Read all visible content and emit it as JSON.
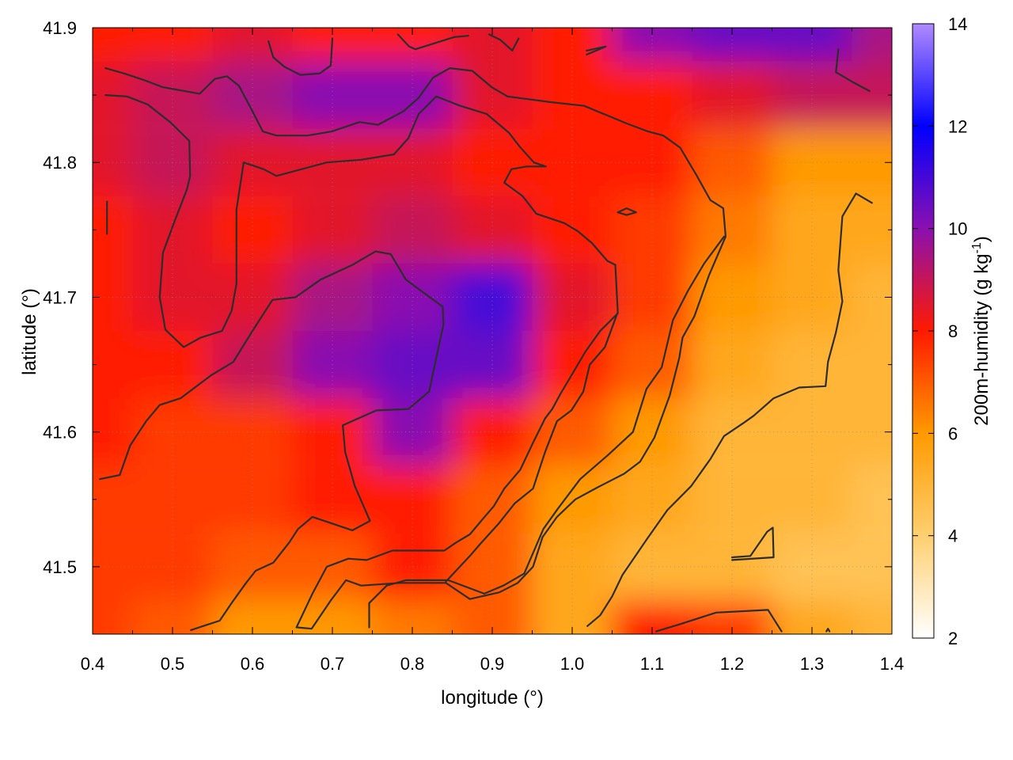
{
  "chart_data": {
    "type": "heatmap",
    "title": "",
    "xlabel": "longitude (°)",
    "ylabel": "latitude (°)",
    "colorbar_label": "200m-humidity (g kg-1)",
    "colorbar_label_parts": {
      "main": "200m-humidity (g kg",
      "sup": "-1",
      "close": ")"
    },
    "xlim": [
      0.4,
      1.4
    ],
    "ylim": [
      41.45,
      41.9
    ],
    "zlim": [
      2,
      14
    ],
    "x_ticks": [
      0.4,
      0.5,
      0.6,
      0.7,
      0.8,
      0.9,
      1.0,
      1.1,
      1.2,
      1.3,
      1.4
    ],
    "x_tick_labels": [
      "0.4",
      "0.5",
      "0.6",
      "0.7",
      "0.8",
      "0.9",
      "1.0",
      "1.1",
      "1.2",
      "1.3",
      "1.4"
    ],
    "y_ticks": [
      41.5,
      41.6,
      41.7,
      41.8,
      41.9
    ],
    "y_tick_labels": [
      "41.5",
      "41.6",
      "41.7",
      "41.8",
      "41.9"
    ],
    "z_ticks": [
      2,
      4,
      6,
      8,
      10,
      12,
      14
    ],
    "z_tick_labels": [
      "2",
      "4",
      "6",
      "8",
      "10",
      "12",
      "14"
    ],
    "grid": true,
    "colormap": [
      {
        "z": 2,
        "color": "#ffffff"
      },
      {
        "z": 4,
        "color": "#ffcf70"
      },
      {
        "z": 6,
        "color": "#ff9a00"
      },
      {
        "z": 8,
        "color": "#ff1a00"
      },
      {
        "z": 10,
        "color": "#8a10b0"
      },
      {
        "z": 12,
        "color": "#0000ff"
      },
      {
        "z": 14,
        "color": "#b08aff"
      }
    ],
    "humidity_grid": {
      "x": [
        0.4,
        0.5,
        0.6,
        0.7,
        0.8,
        0.9,
        1.0,
        1.1,
        1.2,
        1.3,
        1.4
      ],
      "y": [
        41.9,
        41.85,
        41.8,
        41.75,
        41.7,
        41.65,
        41.6,
        41.55,
        41.5,
        41.45
      ],
      "z": [
        [
          8.0,
          8.0,
          8.5,
          8.0,
          8.0,
          8.5,
          8.0,
          10.0,
          10.5,
          10.5,
          9.5
        ],
        [
          8.5,
          9.0,
          9.5,
          10.0,
          10.0,
          8.5,
          8.0,
          8.0,
          8.5,
          9.0,
          9.0
        ],
        [
          8.5,
          9.0,
          8.5,
          8.5,
          8.5,
          8.0,
          8.0,
          8.0,
          7.0,
          6.0,
          6.0
        ],
        [
          8.0,
          8.5,
          8.0,
          8.5,
          9.0,
          8.5,
          8.0,
          7.5,
          6.5,
          5.5,
          5.5
        ],
        [
          8.0,
          8.5,
          8.5,
          9.5,
          10.0,
          11.0,
          8.5,
          7.5,
          6.0,
          5.5,
          5.0
        ],
        [
          8.0,
          8.0,
          9.0,
          10.0,
          10.5,
          10.5,
          8.0,
          7.0,
          5.5,
          5.0,
          5.0
        ],
        [
          8.0,
          7.5,
          7.5,
          8.0,
          10.0,
          8.0,
          7.0,
          6.0,
          5.0,
          5.0,
          5.0
        ],
        [
          7.5,
          7.5,
          7.5,
          8.0,
          8.0,
          7.0,
          6.0,
          5.5,
          5.0,
          5.0,
          4.5
        ],
        [
          7.5,
          7.5,
          7.0,
          7.0,
          8.0,
          7.0,
          5.5,
          5.0,
          5.0,
          4.5,
          4.5
        ],
        [
          7.5,
          7.0,
          6.0,
          6.0,
          6.5,
          7.0,
          5.5,
          8.0,
          7.5,
          5.5,
          5.0
        ]
      ]
    },
    "contours": [
      [
        [
          0.418,
          41.747
        ],
        [
          0.418,
          41.771
        ]
      ],
      [
        [
          0.409,
          41.565
        ],
        [
          0.434,
          41.568
        ],
        [
          0.447,
          41.59
        ],
        [
          0.467,
          41.608
        ],
        [
          0.484,
          41.62
        ],
        [
          0.51,
          41.625
        ],
        [
          0.548,
          41.642
        ],
        [
          0.576,
          41.652
        ],
        [
          0.6,
          41.675
        ],
        [
          0.625,
          41.698
        ],
        [
          0.654,
          41.7
        ],
        [
          0.685,
          41.713
        ],
        [
          0.725,
          41.724
        ],
        [
          0.754,
          41.734
        ],
        [
          0.773,
          41.732
        ],
        [
          0.792,
          41.713
        ],
        [
          0.838,
          41.693
        ],
        [
          0.839,
          41.68
        ],
        [
          0.821,
          41.63
        ],
        [
          0.795,
          41.617
        ],
        [
          0.755,
          41.616
        ],
        [
          0.713,
          41.605
        ],
        [
          0.716,
          41.585
        ],
        [
          0.728,
          41.56
        ],
        [
          0.747,
          41.534
        ],
        [
          0.725,
          41.527
        ],
        [
          0.675,
          41.537
        ],
        [
          0.657,
          41.528
        ],
        [
          0.646,
          41.518
        ],
        [
          0.626,
          41.503
        ],
        [
          0.604,
          41.497
        ],
        [
          0.592,
          41.488
        ],
        [
          0.575,
          41.474
        ],
        [
          0.559,
          41.46
        ],
        [
          0.523,
          41.453
        ]
      ],
      [
        [
          0.416,
          41.87
        ],
        [
          0.44,
          41.866
        ],
        [
          0.465,
          41.861
        ],
        [
          0.487,
          41.856
        ],
        [
          0.534,
          41.851
        ],
        [
          0.553,
          41.862
        ],
        [
          0.568,
          41.864
        ],
        [
          0.583,
          41.857
        ],
        [
          0.6,
          41.838
        ],
        [
          0.613,
          41.823
        ],
        [
          0.63,
          41.82
        ],
        [
          0.669,
          41.82
        ],
        [
          0.699,
          41.823
        ],
        [
          0.734,
          41.83
        ],
        [
          0.757,
          41.828
        ],
        [
          0.789,
          41.838
        ],
        [
          0.808,
          41.848
        ],
        [
          0.826,
          41.863
        ],
        [
          0.847,
          41.87
        ],
        [
          0.875,
          41.868
        ],
        [
          0.899,
          41.856
        ],
        [
          0.919,
          41.849
        ],
        [
          0.97,
          41.845
        ],
        [
          1.015,
          41.842
        ],
        [
          1.068,
          41.829
        ],
        [
          1.095,
          41.823
        ],
        [
          1.114,
          41.82
        ],
        [
          1.135,
          41.811
        ],
        [
          1.155,
          41.791
        ],
        [
          1.173,
          41.772
        ],
        [
          1.189,
          41.766
        ],
        [
          1.192,
          41.745
        ],
        [
          1.171,
          41.716
        ],
        [
          1.153,
          41.686
        ],
        [
          1.138,
          41.67
        ],
        [
          1.134,
          41.655
        ],
        [
          1.122,
          41.627
        ],
        [
          1.103,
          41.596
        ],
        [
          1.085,
          41.578
        ],
        [
          1.065,
          41.569
        ],
        [
          1.032,
          41.559
        ],
        [
          1.004,
          41.55
        ],
        [
          0.981,
          41.537
        ],
        [
          0.963,
          41.522
        ],
        [
          0.951,
          41.5
        ],
        [
          0.932,
          41.488
        ],
        [
          0.909,
          41.481
        ],
        [
          0.872,
          41.476
        ],
        [
          0.842,
          41.488
        ],
        [
          0.785,
          41.488
        ],
        [
          0.736,
          41.486
        ],
        [
          0.717,
          41.49
        ],
        [
          0.698,
          41.475
        ],
        [
          0.674,
          41.454
        ],
        [
          0.656,
          41.455
        ]
      ],
      [
        [
          0.416,
          41.85
        ],
        [
          0.443,
          41.849
        ],
        [
          0.469,
          41.843
        ],
        [
          0.497,
          41.83
        ],
        [
          0.521,
          41.816
        ],
        [
          0.522,
          41.79
        ],
        [
          0.518,
          41.78
        ],
        [
          0.503,
          41.757
        ],
        [
          0.488,
          41.733
        ],
        [
          0.484,
          41.7
        ],
        [
          0.491,
          41.676
        ],
        [
          0.514,
          41.663
        ],
        [
          0.535,
          41.67
        ],
        [
          0.562,
          41.675
        ],
        [
          0.574,
          41.69
        ],
        [
          0.58,
          41.71
        ],
        [
          0.58,
          41.765
        ],
        [
          0.589,
          41.8
        ],
        [
          0.614,
          41.795
        ],
        [
          0.63,
          41.79
        ],
        [
          0.693,
          41.8
        ],
        [
          0.736,
          41.802
        ],
        [
          0.777,
          41.806
        ],
        [
          0.795,
          41.818
        ],
        [
          0.808,
          41.836
        ],
        [
          0.83,
          41.849
        ],
        [
          0.86,
          41.842
        ],
        [
          0.893,
          41.836
        ],
        [
          0.921,
          41.822
        ],
        [
          0.934,
          41.812
        ],
        [
          0.952,
          41.8
        ],
        [
          0.967,
          41.797
        ],
        [
          0.943,
          41.797
        ],
        [
          0.924,
          41.795
        ],
        [
          0.915,
          41.785
        ],
        [
          0.938,
          41.775
        ],
        [
          0.955,
          41.762
        ],
        [
          0.975,
          41.758
        ],
        [
          0.99,
          41.755
        ],
        [
          1.007,
          41.749
        ],
        [
          1.025,
          41.74
        ],
        [
          1.044,
          41.727
        ],
        [
          1.054,
          41.724
        ],
        [
          1.057,
          41.689
        ],
        [
          1.041,
          41.663
        ],
        [
          1.022,
          41.65
        ],
        [
          1.014,
          41.63
        ],
        [
          0.999,
          41.616
        ],
        [
          0.981,
          41.608
        ],
        [
          0.966,
          41.585
        ],
        [
          0.951,
          41.558
        ],
        [
          0.928,
          41.547
        ],
        [
          0.908,
          41.532
        ],
        [
          0.885,
          41.517
        ],
        [
          0.872,
          41.508
        ],
        [
          0.842,
          41.489
        ]
      ],
      [
        [
          0.655,
          41.455
        ],
        [
          0.675,
          41.48
        ],
        [
          0.693,
          41.5
        ],
        [
          0.72,
          41.506
        ],
        [
          0.743,
          41.505
        ],
        [
          0.775,
          41.512
        ],
        [
          0.84,
          41.512
        ],
        [
          0.855,
          41.518
        ],
        [
          0.872,
          41.524
        ],
        [
          0.889,
          41.536
        ],
        [
          0.902,
          41.545
        ],
        [
          0.915,
          41.558
        ],
        [
          0.935,
          41.572
        ],
        [
          0.951,
          41.592
        ],
        [
          0.966,
          41.61
        ],
        [
          0.975,
          41.617
        ],
        [
          0.985,
          41.628
        ],
        [
          1.0,
          41.643
        ],
        [
          1.017,
          41.66
        ],
        [
          1.035,
          41.675
        ],
        [
          1.057,
          41.688
        ]
      ],
      [
        [
          0.746,
          41.455
        ],
        [
          0.746,
          41.473
        ],
        [
          0.768,
          41.486
        ],
        [
          0.792,
          41.49
        ],
        [
          0.845,
          41.49
        ],
        [
          0.89,
          41.48
        ],
        [
          0.914,
          41.486
        ],
        [
          0.94,
          41.495
        ],
        [
          0.964,
          41.528
        ],
        [
          0.982,
          41.543
        ],
        [
          1.01,
          41.565
        ],
        [
          1.045,
          41.583
        ],
        [
          1.076,
          41.6
        ],
        [
          1.093,
          41.632
        ],
        [
          1.112,
          41.648
        ],
        [
          1.126,
          41.683
        ],
        [
          1.145,
          41.705
        ],
        [
          1.165,
          41.725
        ],
        [
          1.19,
          41.745
        ]
      ],
      [
        [
          1.019,
          41.456
        ],
        [
          1.035,
          41.464
        ],
        [
          1.05,
          41.478
        ],
        [
          1.063,
          41.494
        ],
        [
          1.093,
          41.52
        ],
        [
          1.119,
          41.542
        ],
        [
          1.149,
          41.56
        ],
        [
          1.173,
          41.58
        ],
        [
          1.19,
          41.597
        ],
        [
          1.215,
          41.607
        ],
        [
          1.227,
          41.612
        ],
        [
          1.252,
          41.625
        ],
        [
          1.284,
          41.633
        ],
        [
          1.317,
          41.634
        ],
        [
          1.32,
          41.652
        ],
        [
          1.33,
          41.674
        ],
        [
          1.338,
          41.697
        ],
        [
          1.333,
          41.72
        ],
        [
          1.338,
          41.76
        ],
        [
          1.355,
          41.777
        ],
        [
          1.375,
          41.77
        ]
      ],
      [
        [
          1.105,
          41.452
        ],
        [
          1.133,
          41.457
        ],
        [
          1.18,
          41.466
        ],
        [
          1.245,
          41.468
        ],
        [
          1.262,
          41.452
        ]
      ],
      [
        [
          1.2,
          41.507
        ],
        [
          1.223,
          41.508
        ],
        [
          1.244,
          41.526
        ],
        [
          1.251,
          41.529
        ],
        [
          1.252,
          41.507
        ],
        [
          1.2,
          41.505
        ]
      ],
      [
        [
          1.057,
          41.763
        ],
        [
          1.068,
          41.766
        ],
        [
          1.08,
          41.763
        ],
        [
          1.068,
          41.761
        ],
        [
          1.057,
          41.763
        ]
      ],
      [
        [
          0.62,
          41.89
        ],
        [
          0.626,
          41.878
        ],
        [
          0.64,
          41.871
        ],
        [
          0.66,
          41.865
        ],
        [
          0.684,
          41.866
        ],
        [
          0.698,
          41.872
        ],
        [
          0.7,
          41.892
        ]
      ],
      [
        [
          0.782,
          41.895
        ],
        [
          0.796,
          41.886
        ],
        [
          0.804,
          41.884
        ],
        [
          0.852,
          41.893
        ],
        [
          0.87,
          41.894
        ]
      ],
      [
        [
          0.896,
          41.895
        ],
        [
          0.91,
          41.891
        ],
        [
          0.925,
          41.883
        ],
        [
          0.933,
          41.892
        ]
      ],
      [
        [
          1.018,
          41.883
        ],
        [
          1.042,
          41.886
        ],
        [
          1.018,
          41.88
        ]
      ],
      [
        [
          1.333,
          41.884
        ],
        [
          1.33,
          41.867
        ],
        [
          1.35,
          41.86
        ],
        [
          1.372,
          41.853
        ]
      ],
      [
        [
          1.318,
          41.452
        ],
        [
          1.32,
          41.454
        ],
        [
          1.322,
          41.452
        ]
      ]
    ]
  }
}
